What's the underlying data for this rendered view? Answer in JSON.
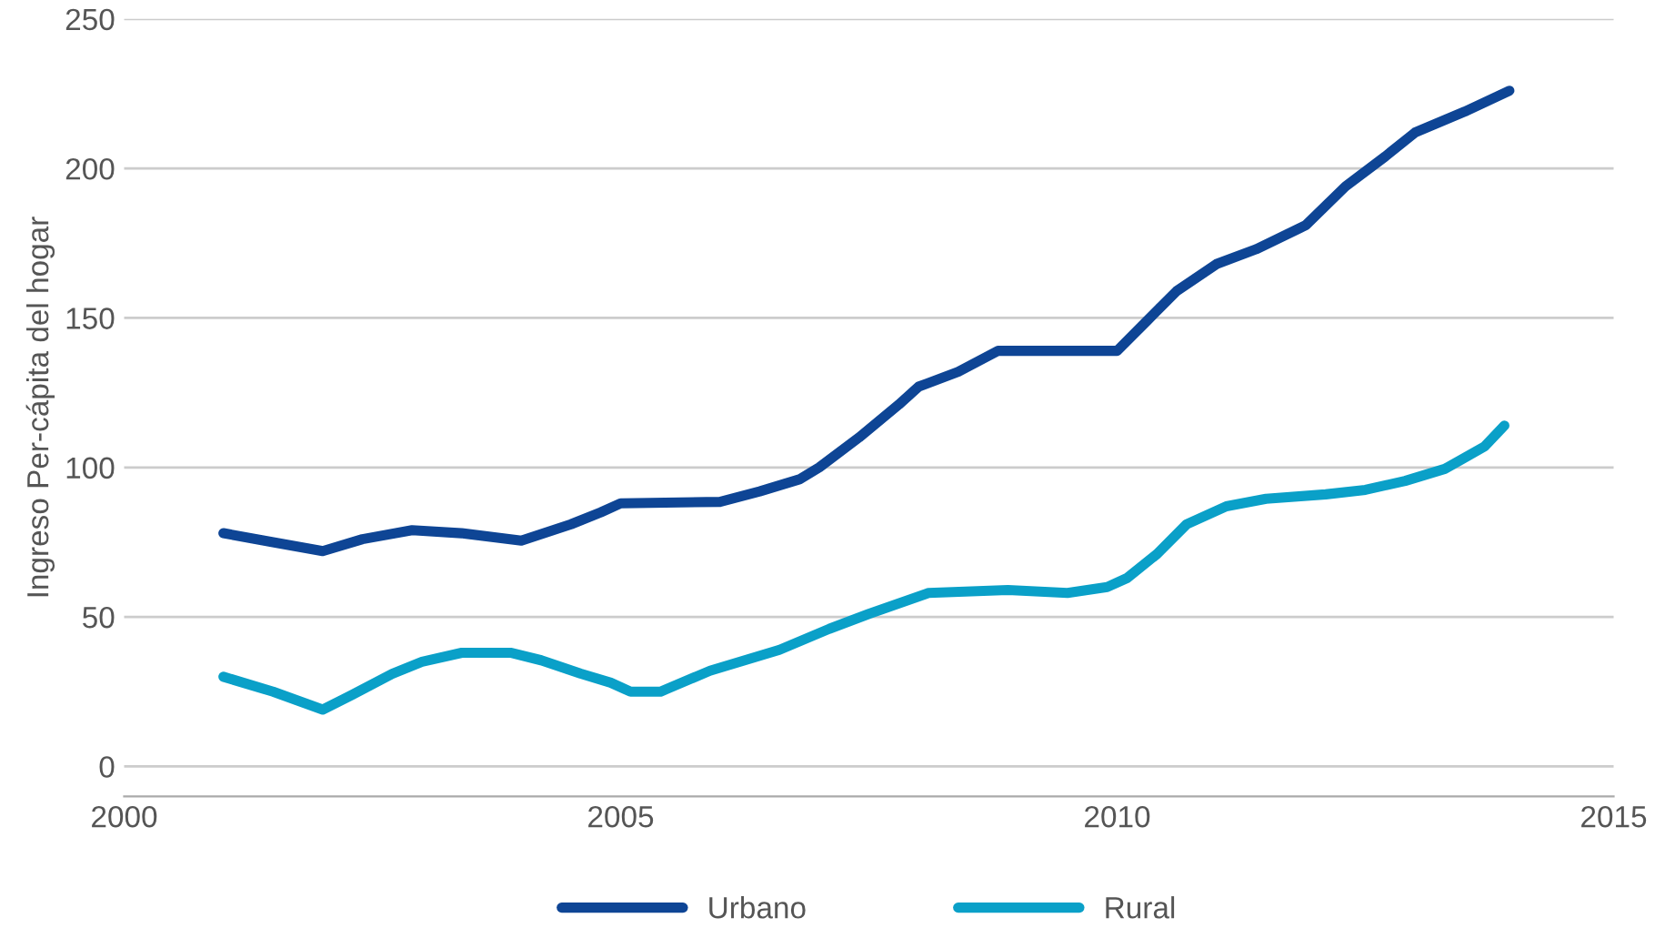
{
  "chart_data": {
    "type": "line",
    "ylabel": "Ingreso Per-cápita del hogar",
    "series": [
      {
        "name": "Urbano",
        "color": "#0e4595",
        "x": [
          2001.0,
          2001.5,
          2002.0,
          2002.4,
          2002.9,
          2003.4,
          2004.0,
          2004.5,
          2004.8,
          2005.0,
          2006.0,
          2006.4,
          2006.8,
          2007.0,
          2007.4,
          2007.8,
          2008.0,
          2008.4,
          2008.8,
          2009.5,
          2010.0,
          2010.3,
          2010.6,
          2011.0,
          2011.4,
          2011.9,
          2012.3,
          2012.7,
          2013.0,
          2013.5,
          2013.95
        ],
        "values": [
          78,
          75,
          72,
          76,
          79,
          78,
          75.5,
          81,
          85,
          88,
          88.5,
          92,
          96,
          100,
          110,
          121,
          127,
          132,
          139,
          139,
          139,
          149,
          159,
          168,
          173,
          181,
          194,
          204,
          212,
          219,
          226
        ]
      },
      {
        "name": "Rural",
        "color": "#0aa0c8",
        "x": [
          2001.0,
          2001.5,
          2002.0,
          2002.3,
          2002.7,
          2003.0,
          2003.4,
          2003.9,
          2004.2,
          2004.6,
          2004.9,
          2005.1,
          2005.4,
          2005.9,
          2006.6,
          2007.1,
          2007.5,
          2008.1,
          2008.9,
          2009.5,
          2009.9,
          2010.1,
          2010.4,
          2010.7,
          2011.1,
          2011.5,
          2012.1,
          2012.5,
          2012.9,
          2013.3,
          2013.7,
          2013.9
        ],
        "values": [
          30,
          25,
          19,
          24,
          31,
          35,
          38,
          38,
          35.5,
          31,
          28,
          25,
          25,
          32,
          39,
          46,
          51,
          58,
          59,
          58,
          60,
          63,
          71,
          81,
          87,
          89.5,
          91,
          92.5,
          95.5,
          99.5,
          107,
          114
        ]
      }
    ],
    "xlim": [
      2000,
      2015
    ],
    "xticks": [
      2000,
      2005,
      2010,
      2015
    ],
    "ylim": [
      -10,
      250
    ],
    "yticks": [
      0,
      50,
      100,
      150,
      200,
      250
    ],
    "grid": "y",
    "legend": "bottom",
    "line_style": "solid",
    "marker": "none"
  }
}
